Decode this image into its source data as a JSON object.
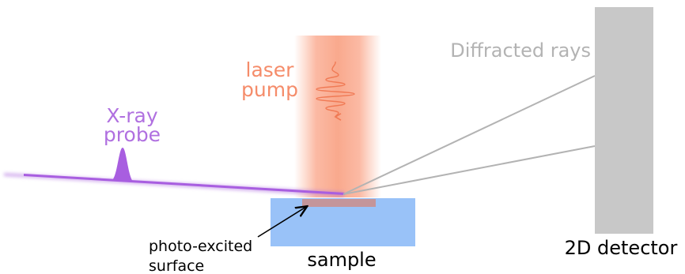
{
  "labels": {
    "laser_line1": "laser",
    "laser_line2": "pump",
    "xray_line1": "X-ray",
    "xray_line2": "probe",
    "diffracted": "Diffracted rays",
    "photo_line1": "photo-excited",
    "photo_line2": "surface",
    "sample": "sample",
    "detector": "2D detector"
  },
  "colors": {
    "laser": "#f58c6a",
    "laser_beam": "#fbb89f",
    "xray": "#b070e0",
    "rays": "#b3b3b3",
    "detector": "#c8c8c8",
    "sample": "#99c2f8",
    "surface": "#c4959a",
    "text": "#000000"
  }
}
